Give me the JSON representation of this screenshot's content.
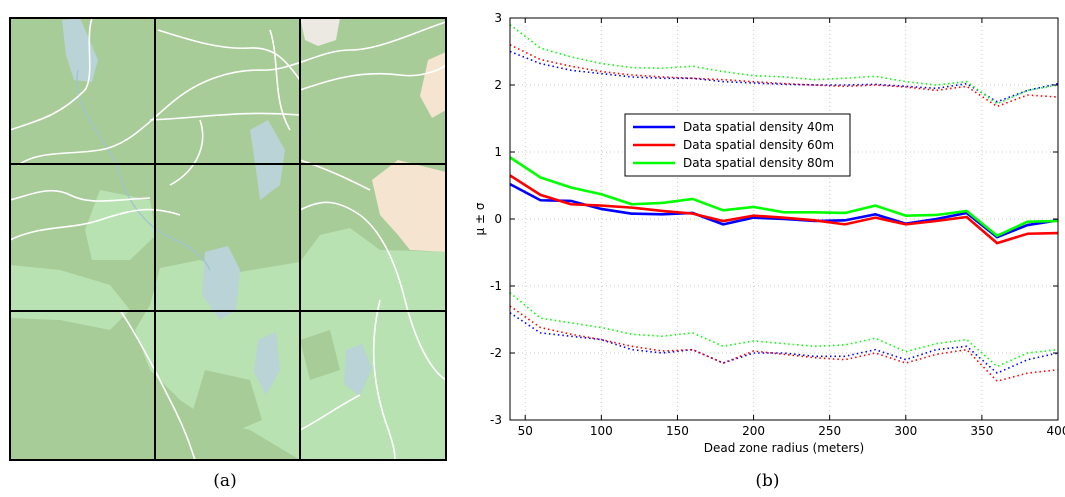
{
  "panel_a": {
    "caption": "(a)",
    "colors": {
      "land": "#a8cc98",
      "forest": "#b9e2b3",
      "water": "#b9d3d6",
      "urban": "#f5e4cf",
      "grey": "#ece9e3",
      "road": "#ffffff",
      "grid": "#000000"
    }
  },
  "panel_b": {
    "caption": "(b)"
  },
  "chart_data": {
    "type": "line",
    "xlabel": "Dead zone radius (meters)",
    "ylabel": "μ ± σ",
    "xlim": [
      40,
      400
    ],
    "ylim": [
      -3,
      3
    ],
    "xticks": [
      50,
      100,
      150,
      200,
      250,
      300,
      350,
      400
    ],
    "yticks": [
      -3,
      -2,
      -1,
      0,
      1,
      2,
      3
    ],
    "grid": true,
    "legend_position": "upper-center",
    "x": [
      40,
      60,
      80,
      100,
      120,
      140,
      160,
      180,
      200,
      220,
      240,
      260,
      280,
      300,
      320,
      340,
      360,
      380,
      400
    ],
    "series": [
      {
        "name": "Data spatial density 40m",
        "color": "#0000ff",
        "mean": [
          0.52,
          0.28,
          0.27,
          0.15,
          0.08,
          0.07,
          0.09,
          -0.08,
          0.02,
          0.0,
          -0.03,
          -0.02,
          0.07,
          -0.07,
          0.0,
          0.09,
          -0.27,
          -0.09,
          -0.02
        ],
        "upper": [
          2.5,
          2.32,
          2.22,
          2.17,
          2.12,
          2.1,
          2.1,
          2.05,
          2.03,
          2.01,
          2.0,
          2.0,
          2.01,
          1.98,
          1.95,
          2.02,
          1.75,
          1.92,
          2.02
        ],
        "lower": [
          -1.4,
          -1.7,
          -1.75,
          -1.8,
          -1.95,
          -2.0,
          -1.95,
          -2.15,
          -2.0,
          -2.0,
          -2.05,
          -2.05,
          -1.95,
          -2.1,
          -1.95,
          -1.9,
          -2.3,
          -2.1,
          -2.0
        ]
      },
      {
        "name": "Data spatial density 60m",
        "color": "#ff0000",
        "mean": [
          0.65,
          0.36,
          0.22,
          0.2,
          0.17,
          0.12,
          0.08,
          -0.03,
          0.05,
          0.02,
          -0.02,
          -0.08,
          0.02,
          -0.08,
          -0.03,
          0.03,
          -0.36,
          -0.22,
          -0.21
        ],
        "upper": [
          2.6,
          2.38,
          2.28,
          2.2,
          2.15,
          2.12,
          2.1,
          2.08,
          2.05,
          2.02,
          2.0,
          1.98,
          2.0,
          1.97,
          1.92,
          1.98,
          1.68,
          1.85,
          1.82
        ],
        "lower": [
          -1.3,
          -1.62,
          -1.72,
          -1.8,
          -1.9,
          -1.97,
          -1.95,
          -2.15,
          -1.97,
          -2.02,
          -2.07,
          -2.1,
          -2.0,
          -2.15,
          -2.02,
          -1.95,
          -2.42,
          -2.3,
          -2.25
        ]
      },
      {
        "name": "Data spatial density 80m",
        "color": "#00ff00",
        "mean": [
          0.92,
          0.62,
          0.47,
          0.37,
          0.22,
          0.24,
          0.3,
          0.13,
          0.18,
          0.1,
          0.1,
          0.09,
          0.2,
          0.05,
          0.06,
          0.12,
          -0.25,
          -0.04,
          -0.03
        ],
        "upper": [
          2.9,
          2.55,
          2.42,
          2.32,
          2.26,
          2.25,
          2.28,
          2.2,
          2.14,
          2.12,
          2.08,
          2.1,
          2.13,
          2.05,
          2.0,
          2.05,
          1.72,
          1.92,
          2.0
        ],
        "lower": [
          -1.1,
          -1.48,
          -1.55,
          -1.62,
          -1.72,
          -1.75,
          -1.7,
          -1.9,
          -1.82,
          -1.86,
          -1.9,
          -1.88,
          -1.78,
          -1.98,
          -1.86,
          -1.8,
          -2.2,
          -2.0,
          -1.95
        ]
      }
    ]
  }
}
